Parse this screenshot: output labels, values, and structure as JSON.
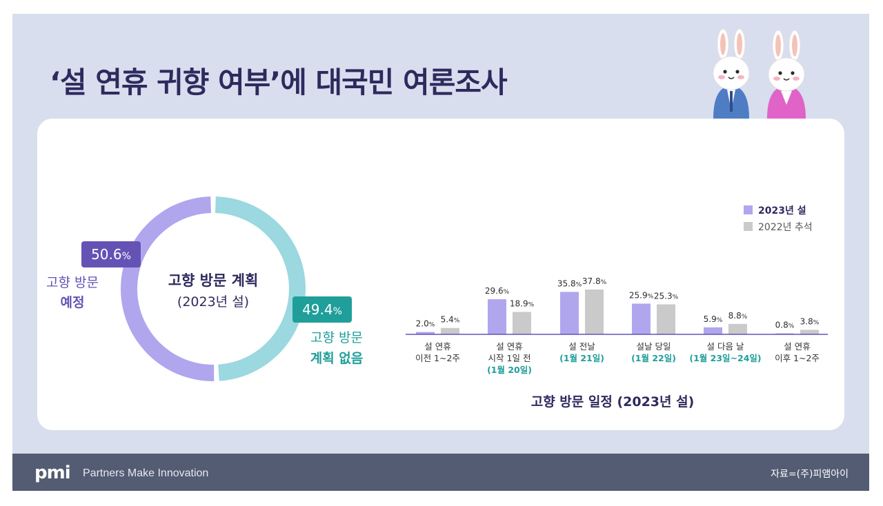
{
  "title": "‘설 연휴 귀향 여부’에 대국민 여론조사",
  "footer": {
    "logo": "pmi",
    "tagline": "Partners Make Innovation",
    "source": "자료=(주)피앰아이"
  },
  "colors": {
    "background": "#d8deed",
    "title": "#2e2a5e",
    "purple": "#b0a6ee",
    "purple_dark": "#6452b5",
    "teal": "#9bd8e0",
    "teal_dark": "#1f9e9a",
    "gray_bar": "#cacaca",
    "footer": "#545c73"
  },
  "illustration": {
    "icons": [
      "rabbit-boy-icon",
      "rabbit-girl-icon"
    ]
  },
  "chart_data": [
    {
      "type": "pie",
      "subtype": "donut",
      "center_title": "고향 방문 계획",
      "center_subtitle": "(2023년 설)",
      "slices": [
        {
          "value_text": "50.6",
          "unit": "%",
          "value": 50.6,
          "label_line1": "고향 방문",
          "label_line2": "예정",
          "color": "#b0a6ee"
        },
        {
          "value_text": "49.4",
          "unit": "%",
          "value": 49.4,
          "label_line1": "고향 방문",
          "label_line2": "계획 없음",
          "color": "#9bd8e0"
        }
      ]
    },
    {
      "type": "bar",
      "title": "고향 방문 일정 (2023년 설)",
      "categories": [
        {
          "line1": "설 연휴",
          "line2": "이전 1~2주",
          "line3": ""
        },
        {
          "line1": "설 연휴",
          "line2": "시작 1일 전",
          "line3": "(1월 20일)"
        },
        {
          "line1": "설 전날",
          "line2": "(1월 21일)",
          "line3": ""
        },
        {
          "line1": "설날 당일",
          "line2": "(1월 22일)",
          "line3": ""
        },
        {
          "line1": "설 다음 날",
          "line2": "(1월 23일~24일)",
          "line3": ""
        },
        {
          "line1": "설 연휴",
          "line2": "이후 1~2주",
          "line3": ""
        }
      ],
      "series": [
        {
          "name": "2023년 설",
          "color": "#b0a6ee",
          "values": [
            2.0,
            29.6,
            35.8,
            25.9,
            5.9,
            0.8
          ],
          "labels": [
            "2.0",
            "29.6",
            "35.8",
            "25.9",
            "5.9",
            "0.8"
          ]
        },
        {
          "name": "2022년 추석",
          "color": "#cacaca",
          "values": [
            5.4,
            18.9,
            37.8,
            25.3,
            8.8,
            3.8
          ],
          "labels": [
            "5.4",
            "18.9",
            "37.8",
            "25.3",
            "8.8",
            "3.8"
          ]
        }
      ],
      "unit": "%",
      "ylim": [
        0,
        40
      ],
      "legend_position": "right"
    }
  ]
}
